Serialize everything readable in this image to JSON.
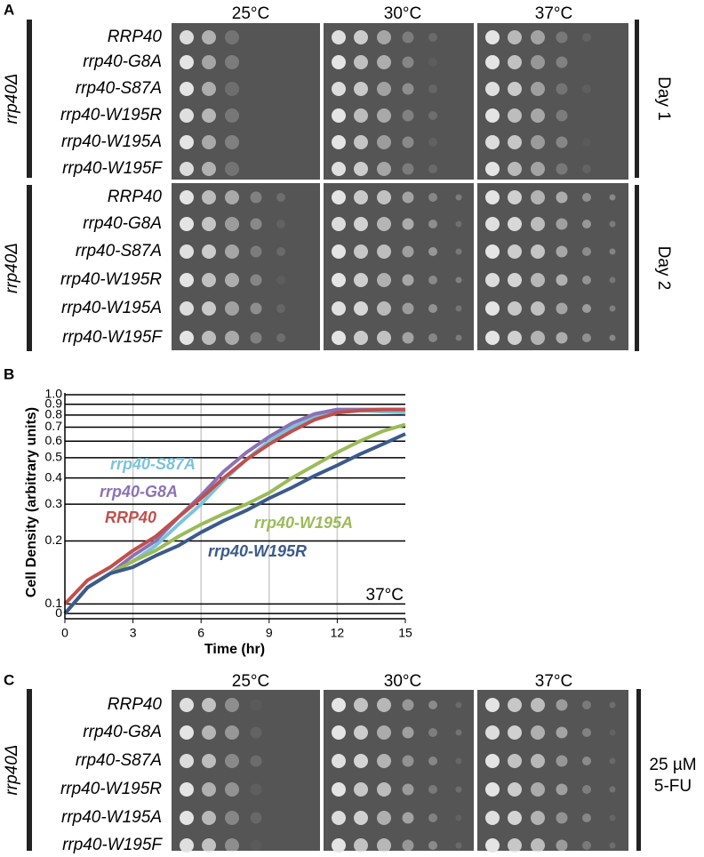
{
  "panel_a": {
    "letter": "A",
    "temperatures": [
      "25°C",
      "30°C",
      "37°C"
    ],
    "strain_group": "rrp40Δ",
    "strains": [
      "RRP40",
      "rrp40-G8A",
      "rrp40-S87A",
      "rrp40-W195R",
      "rrp40-W195A",
      "rrp40-W195F"
    ],
    "days": [
      "Day 1",
      "Day 2"
    ]
  },
  "panel_b": {
    "letter": "B",
    "chart_data": {
      "type": "line",
      "xlabel": "Time (hr)",
      "ylabel": "Cell Density (arbitrary units)",
      "annotation": "37°C",
      "x": [
        0,
        1,
        2,
        3,
        4,
        5,
        6,
        7,
        8,
        9,
        10,
        11,
        12,
        13,
        14,
        15
      ],
      "series": [
        {
          "name": "rrp40-S87A",
          "color": "#7cc3dc",
          "values": [
            0.09,
            0.12,
            0.14,
            0.16,
            0.19,
            0.24,
            0.3,
            0.39,
            0.49,
            0.6,
            0.7,
            0.78,
            0.83,
            0.84,
            0.83,
            0.82
          ]
        },
        {
          "name": "rrp40-G8A",
          "color": "#8c72b4",
          "values": [
            0.09,
            0.12,
            0.14,
            0.17,
            0.2,
            0.26,
            0.33,
            0.43,
            0.53,
            0.63,
            0.73,
            0.81,
            0.85,
            0.85,
            0.85,
            0.85
          ]
        },
        {
          "name": "RRP40",
          "color": "#c0504d",
          "values": [
            0.1,
            0.13,
            0.15,
            0.18,
            0.21,
            0.26,
            0.32,
            0.4,
            0.49,
            0.58,
            0.67,
            0.76,
            0.82,
            0.84,
            0.85,
            0.85
          ]
        },
        {
          "name": "rrp40-W195A",
          "color": "#9bbb59",
          "values": [
            0.09,
            0.12,
            0.14,
            0.16,
            0.18,
            0.21,
            0.24,
            0.27,
            0.3,
            0.34,
            0.4,
            0.46,
            0.53,
            0.6,
            0.67,
            0.72
          ]
        },
        {
          "name": "rrp40-W195R",
          "color": "#3b5a8c",
          "values": [
            0.09,
            0.12,
            0.14,
            0.15,
            0.17,
            0.19,
            0.22,
            0.25,
            0.28,
            0.32,
            0.36,
            0.41,
            0.46,
            0.52,
            0.58,
            0.65
          ]
        }
      ],
      "xlim": [
        0,
        15
      ],
      "xticks": [
        0,
        3,
        6,
        9,
        12,
        15
      ],
      "ylim": [
        0.085,
        1.02
      ],
      "yscale": "log",
      "yticks": [
        {
          "value": 0.09,
          "label": "0"
        },
        0.1,
        0.2,
        0.3,
        0.4,
        0.5,
        0.6,
        0.7,
        0.8,
        0.9,
        {
          "value": 1,
          "label": "1.0"
        }
      ],
      "grid": true
    }
  },
  "panel_c": {
    "letter": "C",
    "temperatures": [
      "25°C",
      "30°C",
      "37°C"
    ],
    "strain_group": "rrp40Δ",
    "strains": [
      "RRP40",
      "rrp40-G8A",
      "rrp40-S87A",
      "rrp40-W195R",
      "rrp40-W195A",
      "rrp40-W195F"
    ],
    "condition": [
      "25 µM",
      "5-FU"
    ]
  }
}
